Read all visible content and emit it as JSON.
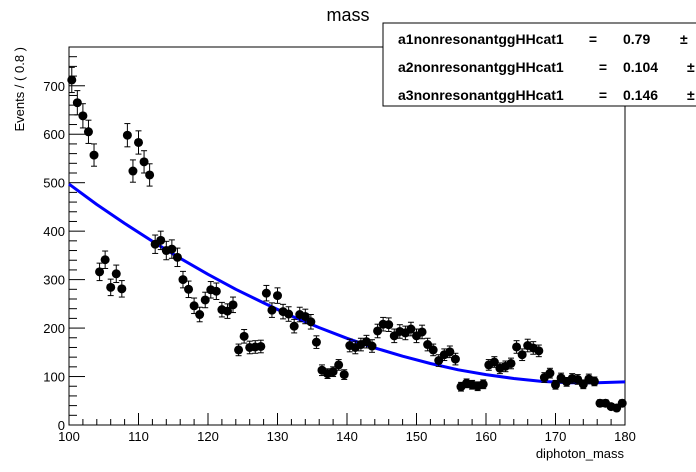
{
  "chart_data": {
    "type": "scatter",
    "title": "mass",
    "xlabel": "diphoton_mass",
    "ylabel": "Events / ( 0.8 )",
    "xlim": [
      100,
      180
    ],
    "ylim": [
      0,
      780
    ],
    "x_ticks": [
      "100",
      "110",
      "120",
      "130",
      "140",
      "150",
      "160",
      "170",
      "180"
    ],
    "y_ticks": [
      "0",
      "100",
      "200",
      "300",
      "400",
      "500",
      "600",
      "700"
    ],
    "grid": false,
    "legend": {
      "placement": "top-right",
      "entries": [
        {
          "name": "a1nonresonantggHHcat1",
          "eq": "=",
          "value": "0.79",
          "pm": "±"
        },
        {
          "name": "a2nonresonantggHHcat1",
          "eq": "=",
          "value": "0.104",
          "pm": "±"
        },
        {
          "name": "a3nonresonantggHHcat1",
          "eq": "=",
          "value": "0.146",
          "pm": "±"
        }
      ]
    },
    "series": [
      {
        "type": "scatter",
        "color": "#000000",
        "points": [
          [
            100.4,
            712,
            26
          ],
          [
            101.2,
            665,
            25
          ],
          [
            102.0,
            638,
            25
          ],
          [
            102.8,
            605,
            24
          ],
          [
            103.6,
            557,
            23
          ],
          [
            104.4,
            316,
            18
          ],
          [
            105.2,
            341,
            18
          ],
          [
            106.0,
            284,
            17
          ],
          [
            106.8,
            312,
            18
          ],
          [
            107.6,
            281,
            17
          ],
          [
            108.4,
            598,
            24
          ],
          [
            109.2,
            524,
            23
          ],
          [
            110.0,
            583,
            24
          ],
          [
            110.8,
            543,
            23
          ],
          [
            111.6,
            516,
            23
          ],
          [
            112.4,
            373,
            19
          ],
          [
            113.2,
            381,
            19
          ],
          [
            114.0,
            360,
            19
          ],
          [
            114.8,
            363,
            19
          ],
          [
            115.6,
            346,
            19
          ],
          [
            116.4,
            300,
            17
          ],
          [
            117.2,
            280,
            17
          ],
          [
            118.0,
            246,
            16
          ],
          [
            118.8,
            228,
            15
          ],
          [
            119.6,
            258,
            16
          ],
          [
            120.4,
            279,
            17
          ],
          [
            121.2,
            276,
            17
          ],
          [
            122.0,
            238,
            15
          ],
          [
            122.8,
            235,
            15
          ],
          [
            123.6,
            248,
            16
          ],
          [
            124.4,
            155,
            12
          ],
          [
            125.2,
            183,
            14
          ],
          [
            126.0,
            160,
            13
          ],
          [
            126.8,
            161,
            13
          ],
          [
            127.6,
            162,
            13
          ],
          [
            128.4,
            272,
            16
          ],
          [
            129.2,
            237,
            15
          ],
          [
            130.0,
            267,
            16
          ],
          [
            130.8,
            234,
            15
          ],
          [
            131.6,
            229,
            15
          ],
          [
            132.4,
            204,
            14
          ],
          [
            133.2,
            228,
            15
          ],
          [
            134.0,
            224,
            15
          ],
          [
            134.8,
            213,
            15
          ],
          [
            135.6,
            171,
            13
          ],
          [
            136.4,
            113,
            11
          ],
          [
            137.2,
            106,
            10
          ],
          [
            138.0,
            110,
            10
          ],
          [
            138.8,
            124,
            11
          ],
          [
            139.6,
            104,
            10
          ],
          [
            140.4,
            164,
            13
          ],
          [
            141.2,
            160,
            13
          ],
          [
            142.0,
            166,
            13
          ],
          [
            142.8,
            172,
            13
          ],
          [
            143.6,
            163,
            13
          ],
          [
            144.4,
            194,
            14
          ],
          [
            145.2,
            208,
            14
          ],
          [
            146.0,
            207,
            14
          ],
          [
            146.8,
            184,
            14
          ],
          [
            147.6,
            193,
            14
          ],
          [
            148.4,
            190,
            14
          ],
          [
            149.2,
            198,
            14
          ],
          [
            150.0,
            184,
            14
          ],
          [
            150.8,
            192,
            14
          ],
          [
            151.6,
            166,
            13
          ],
          [
            152.4,
            155,
            12
          ],
          [
            153.2,
            133,
            12
          ],
          [
            154.0,
            145,
            12
          ],
          [
            154.8,
            151,
            12
          ],
          [
            155.6,
            136,
            12
          ],
          [
            156.4,
            79,
            9
          ],
          [
            157.2,
            86,
            9
          ],
          [
            158.0,
            83,
            9
          ],
          [
            158.8,
            80,
            9
          ],
          [
            159.6,
            84,
            9
          ],
          [
            160.4,
            124,
            11
          ],
          [
            161.2,
            130,
            11
          ],
          [
            162.0,
            117,
            11
          ],
          [
            162.8,
            121,
            11
          ],
          [
            163.6,
            127,
            11
          ],
          [
            164.4,
            161,
            13
          ],
          [
            165.2,
            145,
            12
          ],
          [
            166.0,
            164,
            13
          ],
          [
            166.8,
            159,
            13
          ],
          [
            167.6,
            153,
            12
          ],
          [
            168.4,
            98,
            10
          ],
          [
            169.2,
            107,
            10
          ],
          [
            170.0,
            83,
            9
          ],
          [
            170.8,
            97,
            10
          ],
          [
            171.6,
            89,
            9
          ],
          [
            172.4,
            96,
            10
          ],
          [
            173.2,
            94,
            10
          ],
          [
            174.0,
            84,
            9
          ],
          [
            174.8,
            95,
            10
          ],
          [
            175.6,
            90,
            9
          ],
          [
            176.4,
            45,
            7
          ],
          [
            177.2,
            45,
            7
          ],
          [
            178.0,
            38,
            6
          ],
          [
            178.8,
            35,
            6
          ],
          [
            179.6,
            45,
            7
          ]
        ]
      },
      {
        "type": "line",
        "color": "#0000ff",
        "x": [
          100,
          104,
          108,
          112,
          116,
          120,
          124,
          128,
          132,
          136,
          140,
          144,
          148,
          152,
          156,
          160,
          164,
          168,
          172,
          176,
          180
        ],
        "y": [
          497,
          455,
          416,
          379,
          344,
          311,
          280,
          252,
          225,
          201,
          179,
          159,
          142,
          127,
          114,
          104,
          96,
          90,
          87,
          87,
          89
        ]
      }
    ]
  }
}
